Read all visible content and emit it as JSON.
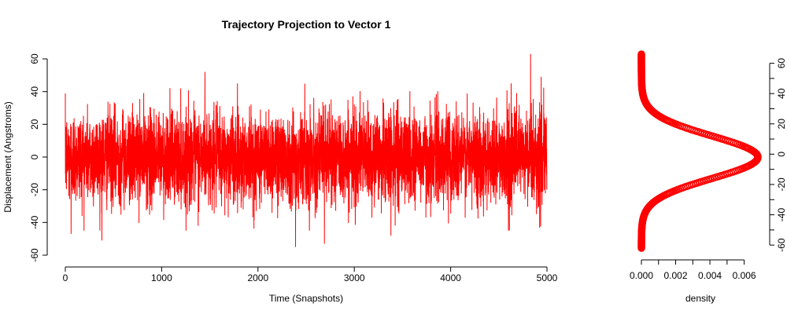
{
  "chart_data": [
    {
      "type": "line",
      "title": "Trajectory Projection to Vector 1",
      "xlabel": "Time (Snapshots)",
      "ylabel": "Displacement (Angstroms)",
      "xlim": [
        0,
        5000
      ],
      "ylim": [
        -60,
        60
      ],
      "x_ticks": [
        0,
        1000,
        2000,
        3000,
        4000,
        5000
      ],
      "y_ticks": [
        -60,
        -40,
        -20,
        0,
        20,
        40,
        60
      ],
      "series_color": "#ff0000",
      "n_points": 5000,
      "distribution": {
        "mean": 0,
        "sd": 14
      },
      "notable_points": [
        {
          "x": 2390,
          "y": -55
        },
        {
          "x": 4830,
          "y": 63
        },
        {
          "x": 1450,
          "y": 52
        },
        {
          "x": 2690,
          "y": -53
        },
        {
          "x": 60,
          "y": -47
        },
        {
          "x": 380,
          "y": -51
        },
        {
          "x": 3380,
          "y": -48
        },
        {
          "x": 4600,
          "y": -45
        },
        {
          "x": 4940,
          "y": 49
        }
      ],
      "grid": false
    },
    {
      "type": "scatter",
      "subtype": "density",
      "title": "",
      "xlabel": "density",
      "ylabel": "",
      "xlim": [
        0,
        0.0068
      ],
      "ylim": [
        -62,
        66
      ],
      "x_ticks": [
        0.0,
        0.002,
        0.004,
        0.006
      ],
      "x_tick_labels": [
        "0.000",
        "0.002",
        "0.004",
        "0.006"
      ],
      "y_ticks": [
        -60,
        -40,
        -20,
        0,
        20,
        40,
        60
      ],
      "y_axis_side": "right",
      "series_color": "#ff0000",
      "curve": {
        "peak_density": 0.0068,
        "peak_at": -2,
        "sd": 14,
        "y_range": [
          -62,
          66
        ]
      },
      "grid": false
    }
  ]
}
